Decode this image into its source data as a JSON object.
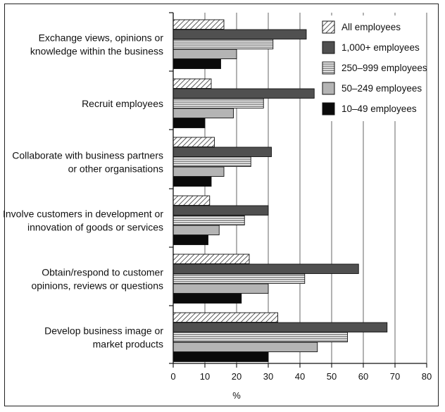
{
  "chart_data": {
    "type": "bar",
    "orientation": "horizontal",
    "xlabel": "%",
    "xlim": [
      0,
      80
    ],
    "xticks": [
      0,
      10,
      20,
      30,
      40,
      50,
      60,
      70,
      80
    ],
    "grid": true,
    "legend_position": "top-right",
    "categories": [
      [
        "Exchange views, opinions or",
        "knowledge within the business"
      ],
      [
        "Recruit employees"
      ],
      [
        "Collaborate with business partners",
        "or other organisations"
      ],
      [
        "Involve customers in development or",
        "innovation of goods or services"
      ],
      [
        "Obtain/respond to customer",
        "opinions, reviews or questions"
      ],
      [
        "Develop business image or",
        "market products"
      ]
    ],
    "series": [
      {
        "name": "All employees",
        "pattern": "diagonal-hatch",
        "values": [
          16,
          12,
          13,
          11.5,
          24,
          33
        ]
      },
      {
        "name": "1,000+ employees",
        "pattern": "dark-grey",
        "values": [
          42,
          44.5,
          31,
          30,
          58.5,
          67.5
        ]
      },
      {
        "name": "250–999 employees",
        "pattern": "horizontal-lines",
        "values": [
          31.5,
          28.5,
          24.5,
          22.5,
          41.5,
          55
        ]
      },
      {
        "name": "50–249 employees",
        "pattern": "light-grey",
        "values": [
          20,
          19,
          16,
          14.5,
          30,
          45.5
        ]
      },
      {
        "name": "10–49 employees",
        "pattern": "black",
        "values": [
          15,
          10,
          12,
          11,
          21.5,
          30
        ]
      }
    ]
  }
}
